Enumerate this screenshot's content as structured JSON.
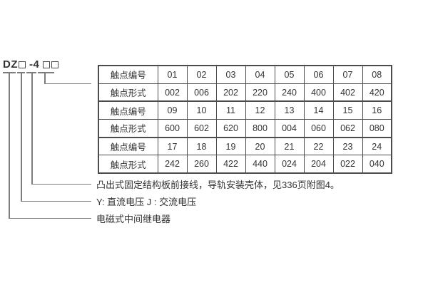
{
  "designation": {
    "full": "DZ□-4□□",
    "prefix": "DZ",
    "middle": "-4"
  },
  "table": {
    "rows": [
      {
        "label": "触点编号",
        "values": [
          "01",
          "02",
          "03",
          "04",
          "05",
          "06",
          "07",
          "08"
        ]
      },
      {
        "label": "触点形式",
        "values": [
          "002",
          "006",
          "202",
          "220",
          "240",
          "400",
          "402",
          "420"
        ]
      },
      {
        "label": "触点编号",
        "values": [
          "09",
          "10",
          "11",
          "12",
          "13",
          "14",
          "15",
          "16"
        ]
      },
      {
        "label": "触点形式",
        "values": [
          "600",
          "602",
          "620",
          "800",
          "004",
          "060",
          "062",
          "080"
        ]
      },
      {
        "label": "触点编号",
        "values": [
          "17",
          "18",
          "19",
          "20",
          "21",
          "22",
          "23",
          "24"
        ]
      },
      {
        "label": "触点形式",
        "values": [
          "242",
          "260",
          "422",
          "440",
          "024",
          "204",
          "022",
          "040"
        ]
      }
    ]
  },
  "annotations": [
    "凸出式固定结构板前接线，导轨安装壳体，见336页附图4。",
    "Y: 直流电压  J : 交流电压",
    "电磁式中间继电器"
  ],
  "colors": {
    "line": "#7d7d7d",
    "table_border": "#4c4c4c",
    "text": "#333333",
    "background": "#ffffff"
  }
}
